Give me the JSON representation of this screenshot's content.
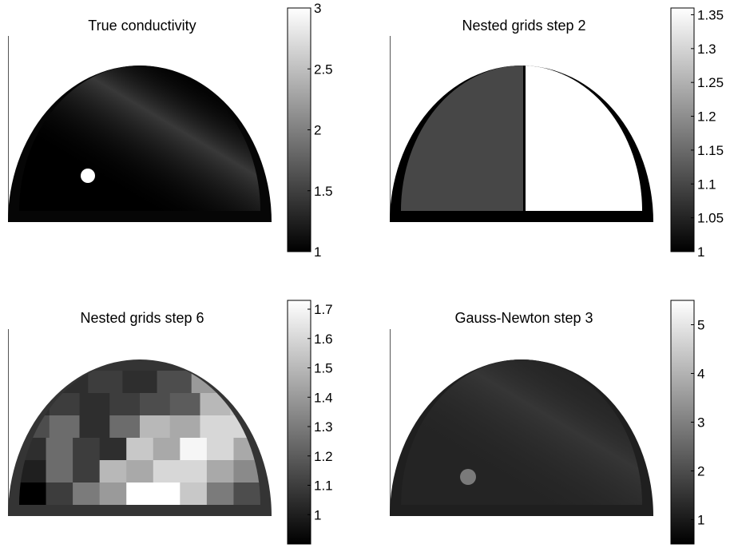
{
  "chart_data": [
    {
      "type": "heatmap",
      "title": "True conductivity",
      "colormap": "gray",
      "clim": [
        1,
        3
      ],
      "colorbar_ticks": [
        "1",
        "1.5",
        "2",
        "2.5",
        "3"
      ],
      "colorbar_values": [
        1,
        1.5,
        2,
        2.5,
        3
      ],
      "features": {
        "background": 1.0,
        "outer_ring": 1.05,
        "inclusion": 3.0,
        "ramp_peak": 1.45
      }
    },
    {
      "type": "heatmap",
      "title": "Nested grids step 2",
      "colormap": "gray",
      "clim": [
        1,
        1.36
      ],
      "colorbar_ticks": [
        "1",
        "1.05",
        "1.1",
        "1.15",
        "1.2",
        "1.25",
        "1.3",
        "1.35"
      ],
      "colorbar_values": [
        1,
        1.05,
        1.1,
        1.15,
        1.2,
        1.25,
        1.3,
        1.35
      ],
      "regions": {
        "ring": 1.0,
        "left_half": 1.1,
        "right_half": 1.36
      }
    },
    {
      "type": "heatmap",
      "title": "Nested grids step 6",
      "colormap": "gray",
      "clim": [
        0.9,
        1.73
      ],
      "colorbar_ticks": [
        "1",
        "1.1",
        "1.2",
        "1.3",
        "1.4",
        "1.5",
        "1.6",
        "1.7"
      ],
      "colorbar_values": [
        1,
        1.1,
        1.2,
        1.3,
        1.4,
        1.5,
        1.6,
        1.7
      ],
      "ring_value": 1.07,
      "block_rows": [
        [
          1.0,
          1.05,
          1.1,
          1.05,
          1.15,
          1.4,
          1.6
        ],
        [
          1.05,
          1.1,
          1.05,
          1.1,
          1.15,
          1.2,
          1.5,
          1.55
        ],
        [
          1.15,
          1.25,
          1.05,
          1.25,
          1.5,
          1.45,
          1.6,
          1.6
        ],
        [
          1.05,
          1.25,
          1.1,
          1.05,
          1.55,
          1.45,
          1.7,
          1.6,
          1.45
        ],
        [
          1.0,
          1.25,
          1.1,
          1.5,
          1.45,
          1.6,
          1.6,
          1.45,
          1.35
        ],
        [
          0.9,
          1.1,
          1.3,
          1.4,
          1.73,
          1.73,
          1.55,
          1.3,
          1.15
        ]
      ]
    },
    {
      "type": "heatmap",
      "title": "Gauss-Newton step 3",
      "colormap": "gray",
      "clim": [
        0.5,
        5.5
      ],
      "colorbar_ticks": [
        "1",
        "2",
        "3",
        "4",
        "5"
      ],
      "colorbar_values": [
        1,
        2,
        3,
        4,
        5
      ],
      "features": {
        "background": 1.2,
        "outer_ring": 1.1,
        "inclusion": 2.9,
        "ramp_peak": 1.55
      }
    }
  ]
}
